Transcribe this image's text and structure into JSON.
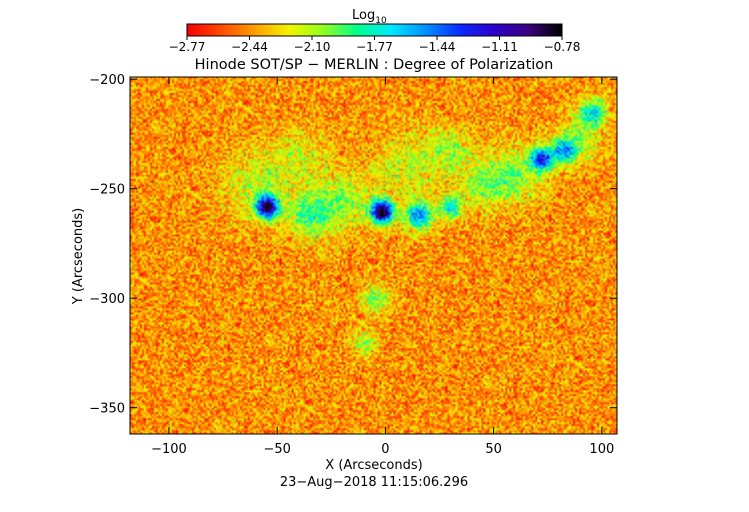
{
  "colorbar": {
    "label_main": "Log",
    "label_sub": "10",
    "ticks": [
      "−2.77",
      "−2.44",
      "−2.10",
      "−1.77",
      "−1.44",
      "−1.11",
      "−0.78"
    ],
    "range": [
      -2.77,
      -0.78
    ],
    "colormap": [
      "#f50000",
      "#ff4a00",
      "#ffa000",
      "#f3f300",
      "#90ff20",
      "#00ff8a",
      "#00e8ff",
      "#0090ff",
      "#0b2cff",
      "#2b00cc",
      "#3a0080",
      "#000000"
    ]
  },
  "chart_data": {
    "type": "heatmap",
    "title": "Hinode SOT/SP − MERLIN : Degree of Polarization",
    "xlabel": "X (Arcseconds)",
    "ylabel": "Y (Arcseconds)",
    "xlim": [
      -118,
      107
    ],
    "ylim": [
      -362,
      -199
    ],
    "x_ticks": [
      -100,
      -50,
      0,
      50,
      100
    ],
    "x_tick_labels": [
      "−100",
      "−50",
      "0",
      "50",
      "100"
    ],
    "y_ticks": [
      -350,
      -300,
      -250,
      -200
    ],
    "y_tick_labels": [
      "−350",
      "−300",
      "−250",
      "−200"
    ],
    "value_label": "Log10 Degree of Polarization",
    "value_range": [
      -2.77,
      -0.78
    ],
    "timestamp": "23−Aug−2018 11:15:06.296"
  }
}
